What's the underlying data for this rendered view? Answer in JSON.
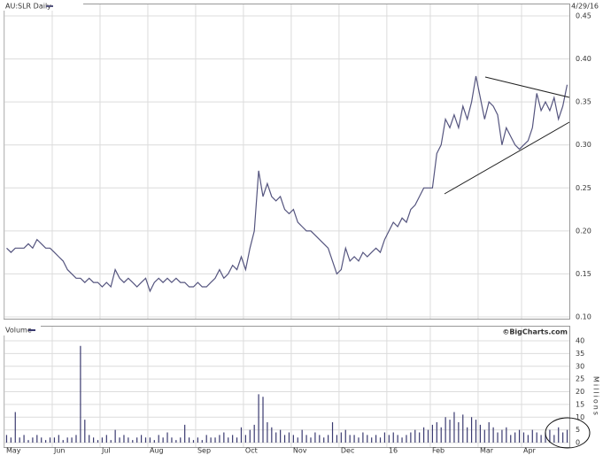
{
  "chart_data": [
    {
      "type": "line",
      "title": "AU:SLR Daily",
      "date": "4/29/16",
      "color": "#55557f",
      "grid": true,
      "ylim": [
        0.1,
        0.45
      ],
      "yticks": [
        {
          "value": 0.1,
          "label": "0.10"
        },
        0.15,
        {
          "value": 0.2,
          "label": "0.20"
        },
        0.25,
        {
          "value": 0.3,
          "label": "0.30"
        },
        0.35,
        {
          "value": 0.4,
          "label": "0.40"
        },
        0.45
      ],
      "values": [
        0.18,
        0.175,
        0.18,
        0.18,
        0.18,
        0.185,
        0.18,
        0.19,
        0.185,
        0.18,
        0.18,
        0.175,
        0.17,
        0.165,
        0.155,
        0.15,
        0.145,
        0.145,
        0.14,
        0.145,
        0.14,
        0.14,
        0.135,
        0.14,
        0.135,
        0.155,
        0.145,
        0.14,
        0.145,
        0.14,
        0.135,
        0.14,
        0.145,
        0.13,
        0.14,
        0.145,
        0.14,
        0.145,
        0.14,
        0.145,
        0.14,
        0.14,
        0.135,
        0.135,
        0.14,
        0.135,
        0.135,
        0.14,
        0.145,
        0.155,
        0.145,
        0.15,
        0.16,
        0.155,
        0.17,
        0.155,
        0.18,
        0.2,
        0.27,
        0.24,
        0.255,
        0.24,
        0.235,
        0.24,
        0.225,
        0.22,
        0.225,
        0.21,
        0.205,
        0.2,
        0.2,
        0.195,
        0.19,
        0.185,
        0.18,
        0.165,
        0.15,
        0.155,
        0.18,
        0.165,
        0.17,
        0.165,
        0.175,
        0.17,
        0.175,
        0.18,
        0.175,
        0.19,
        0.2,
        0.21,
        0.205,
        0.215,
        0.21,
        0.225,
        0.23,
        0.24,
        0.25,
        0.25,
        0.25,
        0.29,
        0.3,
        0.33,
        0.32,
        0.335,
        0.32,
        0.345,
        0.33,
        0.35,
        0.38,
        0.355,
        0.33,
        0.35,
        0.345,
        0.335,
        0.3,
        0.32,
        0.31,
        0.3,
        0.295,
        0.3,
        0.305,
        0.32,
        0.36,
        0.34,
        0.35,
        0.34,
        0.355,
        0.33,
        0.345,
        0.37
      ]
    },
    {
      "type": "bar",
      "title": "Volume",
      "source": "©BigCharts.com",
      "y_label": "Millions",
      "color": "#3a3a70",
      "grid": true,
      "ylim": [
        0,
        40
      ],
      "yticks": [
        0,
        5,
        10,
        15,
        20,
        25,
        30,
        35,
        40
      ],
      "categories": [
        "May",
        null,
        null,
        null,
        null,
        null,
        null,
        null,
        null,
        null,
        null,
        "Jun",
        null,
        null,
        null,
        null,
        null,
        null,
        null,
        null,
        null,
        null,
        "Jul",
        null,
        null,
        null,
        null,
        null,
        null,
        null,
        null,
        null,
        null,
        "Aug",
        null,
        null,
        null,
        null,
        null,
        null,
        null,
        null,
        null,
        null,
        "Sep",
        null,
        null,
        null,
        null,
        null,
        null,
        null,
        null,
        null,
        null,
        "Oct",
        null,
        null,
        null,
        null,
        null,
        null,
        null,
        null,
        null,
        null,
        "Nov",
        null,
        null,
        null,
        null,
        null,
        null,
        null,
        null,
        null,
        null,
        "Dec",
        null,
        null,
        null,
        null,
        null,
        null,
        null,
        null,
        null,
        null,
        "16",
        null,
        null,
        null,
        null,
        null,
        null,
        null,
        null,
        null,
        "Feb",
        null,
        null,
        null,
        null,
        null,
        null,
        null,
        null,
        null,
        null,
        "Mar",
        null,
        null,
        null,
        null,
        null,
        null,
        null,
        null,
        null,
        "Apr",
        null,
        null,
        null,
        null,
        null,
        null,
        null,
        null,
        null,
        null
      ],
      "values": [
        3,
        2,
        12,
        2,
        3,
        1,
        2,
        3,
        2,
        1,
        2,
        2,
        3,
        1,
        2,
        2,
        3,
        38,
        9,
        3,
        2,
        1,
        2,
        3,
        1,
        5,
        2,
        3,
        2,
        1,
        2,
        3,
        2,
        2,
        1,
        3,
        2,
        4,
        2,
        1,
        2,
        7,
        2,
        1,
        2,
        1,
        3,
        2,
        2,
        3,
        4,
        2,
        3,
        2,
        6,
        3,
        5,
        7,
        19,
        18,
        8,
        6,
        4,
        5,
        3,
        4,
        3,
        2,
        5,
        3,
        2,
        4,
        3,
        2,
        3,
        8,
        3,
        4,
        5,
        3,
        3,
        2,
        4,
        3,
        2,
        3,
        2,
        4,
        3,
        4,
        3,
        2,
        3,
        4,
        5,
        4,
        6,
        5,
        7,
        8,
        6,
        10,
        9,
        12,
        8,
        11,
        6,
        10,
        9,
        7,
        5,
        8,
        6,
        4,
        5,
        6,
        3,
        4,
        5,
        4,
        3,
        5,
        4,
        3,
        4,
        5,
        3,
        6,
        4,
        5
      ]
    }
  ]
}
